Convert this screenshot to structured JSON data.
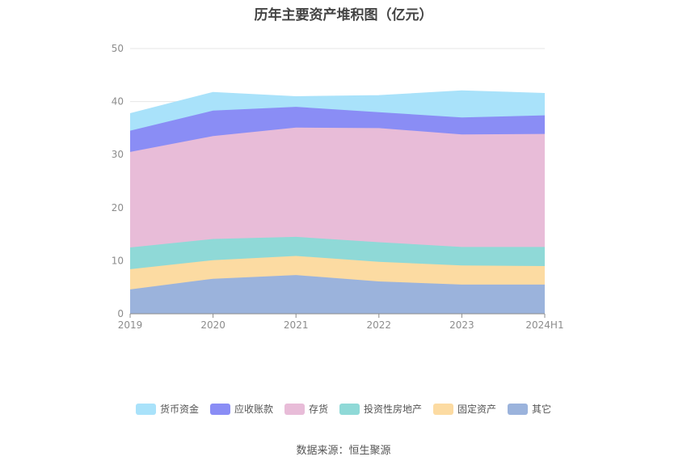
{
  "chart_data": {
    "type": "area",
    "stacked": true,
    "title": "历年主要资产堆积图（亿元）",
    "x": [
      "2019",
      "2020",
      "2021",
      "2022",
      "2023",
      "2024H1"
    ],
    "ylim": [
      0,
      50
    ],
    "yticks": [
      0,
      10,
      20,
      30,
      40,
      50
    ],
    "grid": true,
    "legend_position": "bottom",
    "series": [
      {
        "name": "其它",
        "color": "#9bb3dc",
        "values": [
          4.6,
          6.6,
          7.3,
          6.1,
          5.5,
          5.5
        ]
      },
      {
        "name": "固定资产",
        "color": "#fcdba2",
        "values": [
          3.8,
          3.5,
          3.6,
          3.7,
          3.6,
          3.5
        ]
      },
      {
        "name": "投资性房地产",
        "color": "#8fd9d7",
        "values": [
          4.1,
          4.0,
          3.6,
          3.7,
          3.5,
          3.6
        ]
      },
      {
        "name": "存货",
        "color": "#e8bcd8",
        "values": [
          18.0,
          19.4,
          20.6,
          21.5,
          21.2,
          21.3
        ]
      },
      {
        "name": "应收账款",
        "color": "#8a8df5",
        "values": [
          4.0,
          4.8,
          3.9,
          3.0,
          3.2,
          3.5
        ]
      },
      {
        "name": "货币资金",
        "color": "#a9e2fa",
        "values": [
          3.2,
          3.4,
          1.9,
          3.1,
          5.0,
          4.1
        ]
      }
    ],
    "legend_order": [
      "货币资金",
      "应收账款",
      "存货",
      "投资性房地产",
      "固定资产",
      "其它"
    ],
    "source": "数据来源：恒生聚源"
  }
}
